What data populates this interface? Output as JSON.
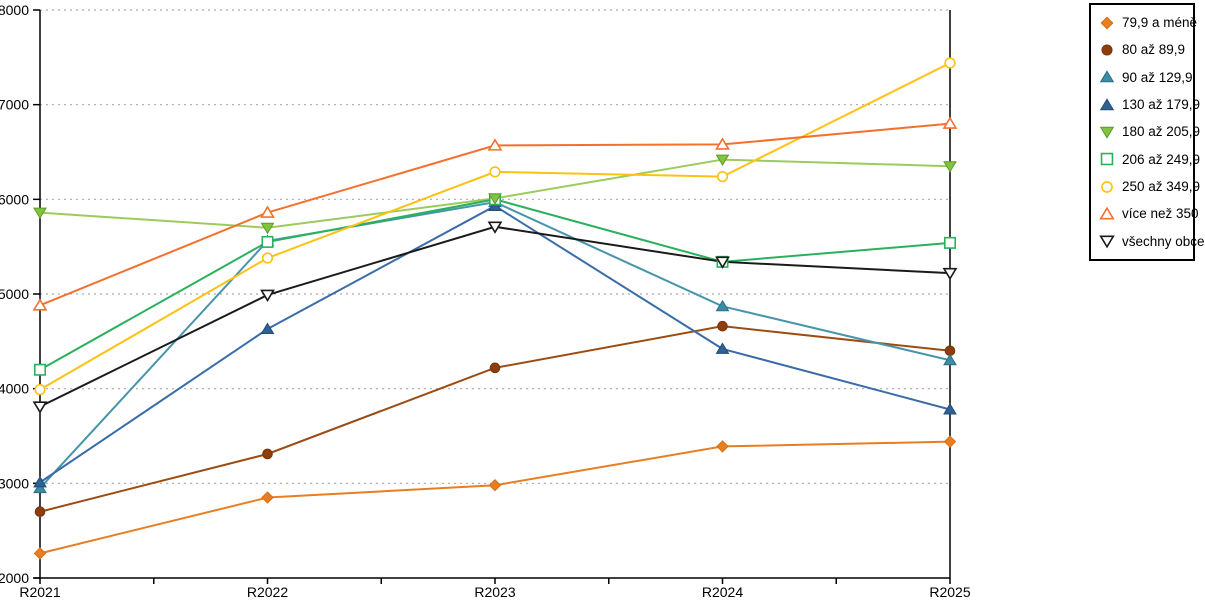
{
  "chart_data": {
    "type": "line",
    "title": "",
    "xlabel": "",
    "ylabel": "",
    "x": [
      "R2021",
      "R2022",
      "R2023",
      "R2024",
      "R2025"
    ],
    "ylim": [
      2000,
      8000
    ],
    "yticks": [
      2000,
      3000,
      4000,
      5000,
      6000,
      7000,
      8000
    ],
    "grid": "horizontal-dotted",
    "legend_position": "top-right-outside",
    "axis_color": "#000000",
    "grid_color": "#aaaaaa",
    "series": [
      {
        "name": "79,9 a méně",
        "marker": "diamond",
        "fill": "solid",
        "color": "#E87E22",
        "marker_color": "#E87E22",
        "marker_stroke": "#D96F14",
        "values": [
          2260,
          2850,
          2980,
          3390,
          3440
        ]
      },
      {
        "name": "80 až 89,9",
        "marker": "circle",
        "fill": "solid",
        "color": "#9C4C13",
        "marker_color": "#8E3D0C",
        "marker_stroke": "#7A3309",
        "values": [
          2700,
          3310,
          4220,
          4660,
          4400
        ]
      },
      {
        "name": "90 až 129,9",
        "marker": "triangle-up",
        "fill": "solid",
        "color": "#4795AB",
        "marker_color": "#3E8CA3",
        "marker_stroke": "#2A6E84",
        "values": [
          2950,
          5560,
          5970,
          4870,
          4300
        ]
      },
      {
        "name": "130 až 179,9",
        "marker": "triangle-up",
        "fill": "solid",
        "color": "#3A6CA8",
        "marker_color": "#2F6191",
        "marker_stroke": "#234C75",
        "values": [
          3010,
          4630,
          5930,
          4420,
          3780
        ]
      },
      {
        "name": "180 až 205,9",
        "marker": "triangle-down",
        "fill": "solid",
        "color": "#9CCB5B",
        "marker_color": "#82C341",
        "marker_stroke": "#5E9A28",
        "values": [
          5860,
          5700,
          6010,
          6420,
          6350
        ]
      },
      {
        "name": "206 až 249,9",
        "marker": "square",
        "fill": "open",
        "color": "#2BB05E",
        "marker_color": "#2BB05E",
        "marker_stroke": "#2BB05E",
        "values": [
          4200,
          5550,
          6000,
          5340,
          5540
        ]
      },
      {
        "name": "250 až 349,9",
        "marker": "circle",
        "fill": "open",
        "color": "#FCC212",
        "marker_color": "#FCC212",
        "marker_stroke": "#FCC212",
        "values": [
          3990,
          5380,
          6290,
          6240,
          7440
        ]
      },
      {
        "name": "více než 350",
        "marker": "triangle-up",
        "fill": "open",
        "color": "#F4702D",
        "marker_color": "#F4702D",
        "marker_stroke": "#F4702D",
        "values": [
          4880,
          5860,
          6570,
          6580,
          6800
        ]
      },
      {
        "name": "všechny obce",
        "marker": "triangle-down",
        "fill": "open",
        "color": "#1A1A1A",
        "marker_color": "#1A1A1A",
        "marker_stroke": "#1A1A1A",
        "values": [
          3810,
          4990,
          5710,
          5340,
          5220
        ]
      }
    ]
  }
}
